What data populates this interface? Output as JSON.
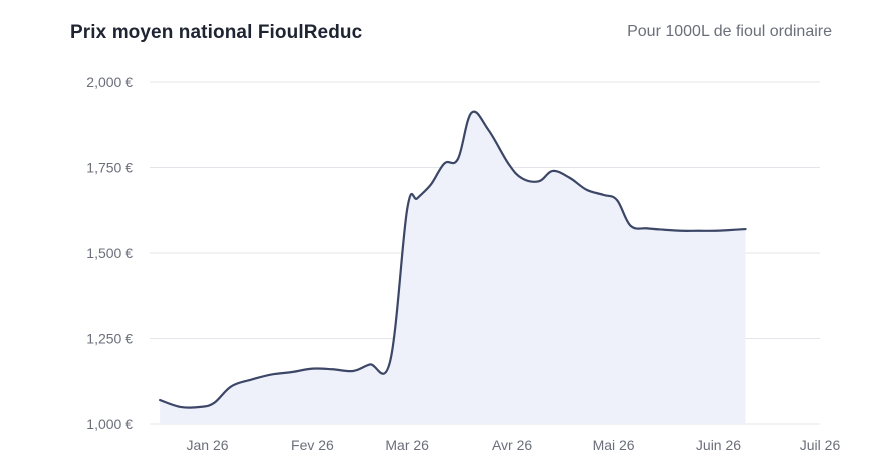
{
  "header": {
    "title": "Prix moyen national FioulReduc",
    "subtitle": "Pour 1000L de fioul ordinaire"
  },
  "colors": {
    "line": "#3c4666",
    "area": "#eef1fa",
    "grid": "#e3e5ea",
    "tick_text": "#6b6f7a",
    "title": "#1f2433"
  },
  "chart_data": {
    "type": "area",
    "title": "Prix moyen national FioulReduc",
    "subtitle": "Pour 1000L de fioul ordinaire",
    "xlabel": "",
    "ylabel": "",
    "unit": "€",
    "xlim": [
      "2025-12-15",
      "2026-07-01"
    ],
    "ylim": [
      1000,
      2000
    ],
    "y_ticks": [
      1000,
      1250,
      1500,
      1750,
      2000
    ],
    "y_tick_labels": [
      "1,000 €",
      "1,250 €",
      "1,500 €",
      "1,750 €",
      "2,000 €"
    ],
    "x_ticks": [
      "2026-01-01",
      "2026-02-01",
      "2026-03-01",
      "2026-04-01",
      "2026-05-01",
      "2026-06-01",
      "2026-07-01"
    ],
    "x_tick_labels": [
      "Jan 26",
      "Fev 26",
      "Mar 26",
      "Avr 26",
      "Mai 26",
      "Juin 26",
      "Juil 26"
    ],
    "grid": "horizontal",
    "legend": "none",
    "series": [
      {
        "x": [
          "2025-12-18",
          "2025-12-24",
          "2025-12-30",
          "2026-01-03",
          "2026-01-08",
          "2026-01-14",
          "2026-01-20",
          "2026-01-26",
          "2026-02-01",
          "2026-02-07",
          "2026-02-13",
          "2026-02-18",
          "2026-02-24",
          "2026-03-01",
          "2026-03-04",
          "2026-03-08",
          "2026-03-12",
          "2026-03-16",
          "2026-03-20",
          "2026-03-25",
          "2026-03-31",
          "2026-04-04",
          "2026-04-09",
          "2026-04-13",
          "2026-04-18",
          "2026-04-23",
          "2026-04-28",
          "2026-05-02",
          "2026-05-06",
          "2026-05-11",
          "2026-05-16",
          "2026-05-21",
          "2026-05-26",
          "2026-05-31",
          "2026-06-04",
          "2026-06-09"
        ],
        "y": [
          1070,
          1050,
          1050,
          1062,
          1110,
          1130,
          1145,
          1152,
          1162,
          1160,
          1155,
          1174,
          1185,
          1628,
          1660,
          1700,
          1762,
          1775,
          1910,
          1860,
          1760,
          1718,
          1710,
          1740,
          1720,
          1685,
          1670,
          1655,
          1580,
          1572,
          1568,
          1565,
          1565,
          1565,
          1567,
          1570
        ]
      }
    ]
  }
}
